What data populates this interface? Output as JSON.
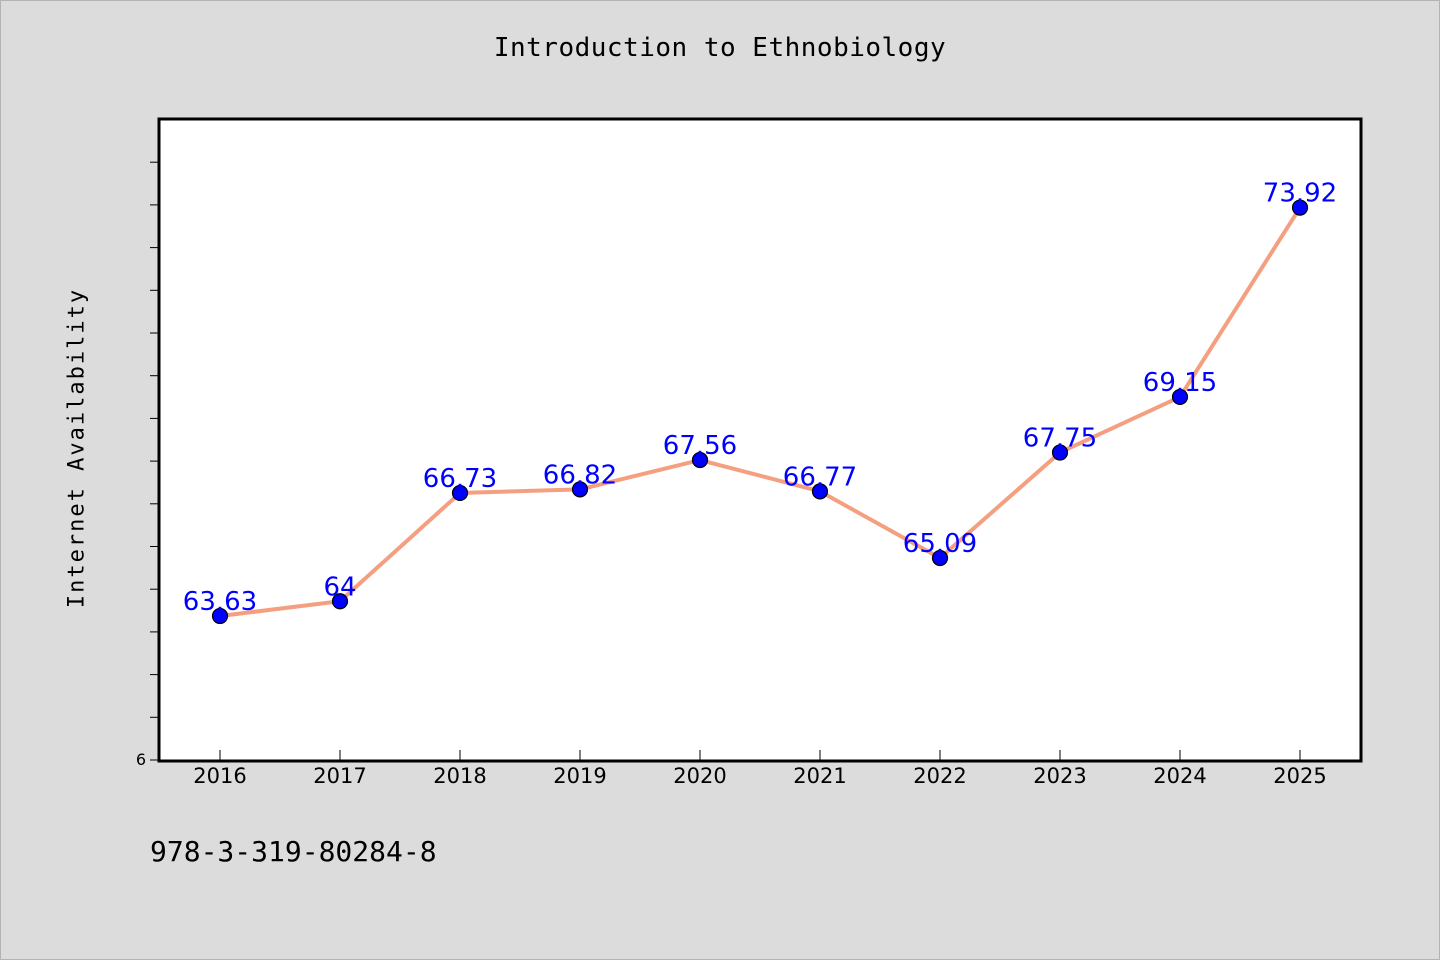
{
  "chart_data": {
    "type": "line",
    "title": "Introduction to Ethnobiology",
    "ylabel": "Internet Availability",
    "xlabel": "",
    "categories": [
      "2016",
      "2017",
      "2018",
      "2019",
      "2020",
      "2021",
      "2022",
      "2023",
      "2024",
      "2025"
    ],
    "series": [
      {
        "values": [
          63.63,
          64,
          66.73,
          66.82,
          67.56,
          66.77,
          65.09,
          67.75,
          69.15,
          73.92
        ],
        "data_labels": [
          "63.63",
          "64",
          "66.73",
          "66.82",
          "67.56",
          "66.77",
          "65.09",
          "67.75",
          "69.15",
          "73.92"
        ]
      }
    ],
    "y_tick_labels": [
      "6"
    ],
    "ylim": [
      60,
      75
    ],
    "grid": false,
    "colors": {
      "line": "#f4a080",
      "marker": "#0000ff",
      "data_label": "#0000ff",
      "plot_background": "#ffffff",
      "page_background": "#dcdcdc"
    }
  },
  "footer": {
    "code": "978-3-319-80284-8"
  }
}
